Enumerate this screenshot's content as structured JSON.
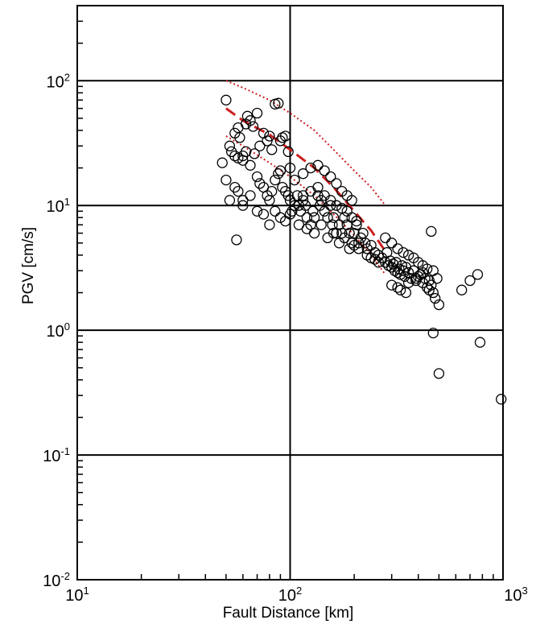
{
  "chart_data": {
    "type": "scatter",
    "title": "",
    "xlabel": "Fault Distance [km]",
    "ylabel": "PGV [cm/s]",
    "xscale": "log",
    "yscale": "log",
    "xlim": [
      10,
      1000
    ],
    "ylim": [
      0.01,
      400
    ],
    "grid": "major decades only",
    "x_ticks": [
      {
        "base": "10",
        "exp": "1",
        "value": 10
      },
      {
        "base": "10",
        "exp": "2",
        "value": 100
      },
      {
        "base": "10",
        "exp": "3",
        "value": 1000
      }
    ],
    "y_ticks": [
      {
        "base": "10",
        "exp": "-2",
        "value": 0.01
      },
      {
        "base": "10",
        "exp": "-1",
        "value": 0.1
      },
      {
        "base": "10",
        "exp": "0",
        "value": 1
      },
      {
        "base": "10",
        "exp": "1",
        "value": 10
      },
      {
        "base": "10",
        "exp": "2",
        "value": 100
      }
    ],
    "colors": {
      "observed": "#000000",
      "curves": "#cc1f1f",
      "grid": "#000000"
    },
    "observed": [
      [
        50,
        70
      ],
      [
        52,
        30
      ],
      [
        53,
        27
      ],
      [
        55,
        38
      ],
      [
        57,
        42
      ],
      [
        58,
        35
      ],
      [
        60,
        25
      ],
      [
        62,
        45
      ],
      [
        63,
        52
      ],
      [
        65,
        48
      ],
      [
        67,
        43
      ],
      [
        70,
        55
      ],
      [
        72,
        30
      ],
      [
        75,
        38
      ],
      [
        78,
        33
      ],
      [
        80,
        36
      ],
      [
        82,
        28
      ],
      [
        85,
        65
      ],
      [
        88,
        66
      ],
      [
        90,
        33
      ],
      [
        92,
        35
      ],
      [
        95,
        36
      ],
      [
        98,
        27
      ],
      [
        100,
        20
      ],
      [
        55,
        25
      ],
      [
        57,
        24
      ],
      [
        60,
        23
      ],
      [
        62,
        27
      ],
      [
        65,
        21
      ],
      [
        68,
        26
      ],
      [
        70,
        17
      ],
      [
        72,
        15
      ],
      [
        75,
        14
      ],
      [
        78,
        12
      ],
      [
        80,
        11
      ],
      [
        82,
        13
      ],
      [
        85,
        16
      ],
      [
        88,
        18
      ],
      [
        90,
        19
      ],
      [
        92,
        14
      ],
      [
        95,
        13
      ],
      [
        98,
        12
      ],
      [
        100,
        11
      ],
      [
        102,
        9
      ],
      [
        105,
        10
      ],
      [
        108,
        12
      ],
      [
        110,
        10
      ],
      [
        112,
        9
      ],
      [
        115,
        11
      ],
      [
        118,
        10
      ],
      [
        120,
        8
      ],
      [
        125,
        7
      ],
      [
        128,
        9
      ],
      [
        130,
        8
      ],
      [
        135,
        12
      ],
      [
        138,
        10
      ],
      [
        140,
        11
      ],
      [
        145,
        9
      ],
      [
        150,
        8
      ],
      [
        155,
        10
      ],
      [
        158,
        7
      ],
      [
        160,
        8
      ],
      [
        165,
        6
      ],
      [
        170,
        7
      ],
      [
        175,
        6
      ],
      [
        180,
        8
      ],
      [
        185,
        7
      ],
      [
        190,
        6
      ],
      [
        195,
        5
      ],
      [
        200,
        6
      ],
      [
        205,
        7
      ],
      [
        210,
        5
      ],
      [
        215,
        5.5
      ],
      [
        220,
        6
      ],
      [
        225,
        5
      ],
      [
        230,
        4.5
      ],
      [
        240,
        4.8
      ],
      [
        250,
        4.2
      ],
      [
        260,
        4
      ],
      [
        270,
        3.8
      ],
      [
        280,
        3.5
      ],
      [
        285,
        4.2
      ],
      [
        290,
        3.3
      ],
      [
        295,
        3.6
      ],
      [
        300,
        3.2
      ],
      [
        305,
        3.4
      ],
      [
        310,
        3
      ],
      [
        315,
        3.5
      ],
      [
        320,
        2.9
      ],
      [
        325,
        3.1
      ],
      [
        330,
        2.8
      ],
      [
        335,
        3.3
      ],
      [
        340,
        3
      ],
      [
        345,
        2.7
      ],
      [
        350,
        3.2
      ],
      [
        360,
        2.9
      ],
      [
        370,
        2.6
      ],
      [
        380,
        3
      ],
      [
        390,
        2.5
      ],
      [
        400,
        2.7
      ],
      [
        410,
        2.8
      ],
      [
        420,
        2.4
      ],
      [
        430,
        2.6
      ],
      [
        440,
        2.2
      ],
      [
        450,
        2.5
      ],
      [
        460,
        2.3
      ],
      [
        470,
        2.0
      ],
      [
        480,
        1.8
      ],
      [
        490,
        2.6
      ],
      [
        500,
        1.6
      ],
      [
        60,
        10
      ],
      [
        65,
        12
      ],
      [
        70,
        9
      ],
      [
        75,
        8.5
      ],
      [
        80,
        7
      ],
      [
        85,
        9
      ],
      [
        90,
        8
      ],
      [
        95,
        7.5
      ],
      [
        100,
        8.5
      ],
      [
        110,
        7
      ],
      [
        120,
        6.5
      ],
      [
        130,
        6
      ],
      [
        140,
        7
      ],
      [
        150,
        5.5
      ],
      [
        160,
        6
      ],
      [
        170,
        5
      ],
      [
        180,
        5.5
      ],
      [
        190,
        4.5
      ],
      [
        200,
        4.8
      ],
      [
        210,
        4.5
      ],
      [
        115,
        12
      ],
      [
        125,
        13
      ],
      [
        135,
        14
      ],
      [
        145,
        12
      ],
      [
        155,
        11
      ],
      [
        165,
        10
      ],
      [
        175,
        9.5
      ],
      [
        185,
        9
      ],
      [
        195,
        8
      ],
      [
        205,
        7.5
      ],
      [
        105,
        16
      ],
      [
        115,
        18
      ],
      [
        125,
        20
      ],
      [
        135,
        21
      ],
      [
        145,
        19
      ],
      [
        155,
        17
      ],
      [
        165,
        15
      ],
      [
        175,
        13
      ],
      [
        185,
        12
      ],
      [
        195,
        11
      ],
      [
        48,
        22
      ],
      [
        50,
        16
      ],
      [
        52,
        11
      ],
      [
        55,
        14
      ],
      [
        57,
        13
      ],
      [
        60,
        11
      ],
      [
        56,
        5.3
      ],
      [
        280,
        5.5
      ],
      [
        300,
        5
      ],
      [
        320,
        4.5
      ],
      [
        340,
        4.2
      ],
      [
        360,
        4
      ],
      [
        380,
        3.8
      ],
      [
        400,
        3.5
      ],
      [
        420,
        3.3
      ],
      [
        440,
        3.1
      ],
      [
        460,
        6.2
      ],
      [
        470,
        3
      ],
      [
        320,
        2.2
      ],
      [
        350,
        2.0
      ],
      [
        300,
        2.3
      ],
      [
        330,
        2.1
      ],
      [
        360,
        2.4
      ],
      [
        390,
        2.6
      ],
      [
        420,
        2.9
      ],
      [
        450,
        2.1
      ],
      [
        240,
        3.8
      ],
      [
        260,
        3.5
      ],
      [
        230,
        4
      ],
      [
        250,
        3.7
      ],
      [
        470,
        0.95
      ],
      [
        500,
        0.45
      ],
      [
        640,
        2.1
      ],
      [
        700,
        2.5
      ],
      [
        760,
        2.8
      ],
      [
        780,
        0.8
      ],
      [
        980,
        0.28
      ]
    ],
    "series": [
      {
        "style": "dashed",
        "x": [
          50,
          60,
          80,
          100,
          130,
          160,
          200,
          240,
          280
        ],
        "y": [
          60,
          48,
          37,
          28,
          20,
          14,
          9,
          6.3,
          4.3
        ]
      },
      {
        "style": "dotted-upper",
        "x": [
          50,
          60,
          80,
          100,
          130,
          160,
          200,
          240,
          280
        ],
        "y": [
          100,
          88,
          70,
          55,
          40,
          28,
          19,
          14,
          10
        ]
      },
      {
        "style": "dotted-lower",
        "x": [
          50,
          60,
          80,
          100,
          130,
          160,
          200,
          240,
          280
        ],
        "y": [
          36,
          30,
          22,
          17,
          12,
          8.5,
          5.8,
          4,
          2.8
        ]
      }
    ]
  }
}
